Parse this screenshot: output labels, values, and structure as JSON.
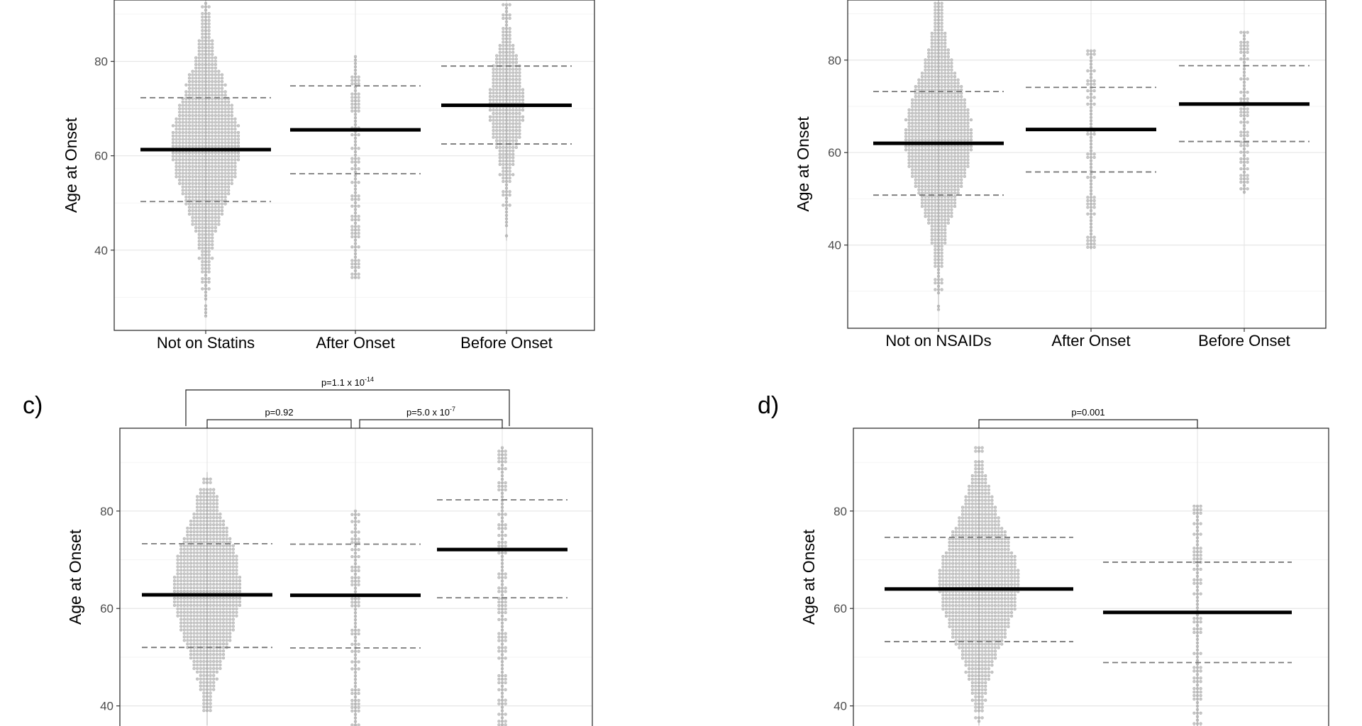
{
  "figure": {
    "panels": [
      {
        "label": "",
        "chart_data": {
          "type": "scatter",
          "subtype": "beeswarm with mean and SD lines",
          "ylabel": "Age at Onset",
          "xlabel": "",
          "ylim": [
            23,
            93
          ],
          "yticks": [
            40,
            60,
            80
          ],
          "grid": true,
          "categories": [
            "Not on Statins",
            "After Onset",
            "Before Onset"
          ],
          "groups": [
            {
              "name": "Not on Statins",
              "mean": 61.3,
              "sd_low": 50.3,
              "sd_high": 72.3,
              "min": 26,
              "max": 93,
              "peak": 62,
              "halfwidth": 10,
              "n": 900
            },
            {
              "name": "After Onset",
              "mean": 65.5,
              "sd_low": 56.2,
              "sd_high": 74.8,
              "min": 34,
              "max": 81,
              "peak": 68,
              "halfwidth": 1,
              "n": 45
            },
            {
              "name": "Before Onset",
              "mean": 70.7,
              "sd_low": 62.5,
              "sd_high": 79.0,
              "min": 42,
              "max": 92,
              "peak": 71,
              "halfwidth": 5,
              "n": 180
            }
          ],
          "comparisons": []
        }
      },
      {
        "label": "",
        "chart_data": {
          "type": "scatter",
          "subtype": "beeswarm with mean and SD lines",
          "ylabel": "Age at Onset",
          "xlabel": "",
          "ylim": [
            22,
            93
          ],
          "yticks": [
            40,
            60,
            80
          ],
          "grid": true,
          "categories": [
            "Not on NSAIDs",
            "After Onset",
            "Before Onset"
          ],
          "groups": [
            {
              "name": "Not on NSAIDs",
              "mean": 62.0,
              "sd_low": 50.8,
              "sd_high": 73.2,
              "min": 26,
              "max": 93,
              "peak": 63,
              "halfwidth": 10,
              "n": 800
            },
            {
              "name": "After Onset",
              "mean": 65.0,
              "sd_low": 55.8,
              "sd_high": 74.1,
              "min": 39,
              "max": 82,
              "peak": 66,
              "halfwidth": 1,
              "n": 60
            },
            {
              "name": "Before Onset",
              "mean": 70.5,
              "sd_low": 62.4,
              "sd_high": 78.8,
              "min": 51,
              "max": 86,
              "peak": 72,
              "halfwidth": 2,
              "n": 90
            }
          ],
          "comparisons": []
        }
      },
      {
        "label": "c)",
        "chart_data": {
          "type": "scatter",
          "subtype": "beeswarm with mean and SD lines",
          "ylabel": "Age at Onset",
          "xlabel": "",
          "ylim": [
            35,
            97
          ],
          "yticks": [
            40,
            60,
            80
          ],
          "grid": true,
          "categories": [
            "",
            "",
            ""
          ],
          "groups": [
            {
              "name": "",
              "mean": 62.8,
              "sd_low": 52.0,
              "sd_high": 73.3,
              "min": 36,
              "max": 88,
              "peak": 64,
              "halfwidth": 10,
              "n": 780
            },
            {
              "name": "",
              "mean": 62.7,
              "sd_low": 51.9,
              "sd_high": 73.2,
              "min": 35,
              "max": 80,
              "peak": 63,
              "halfwidth": 1,
              "n": 60
            },
            {
              "name": "",
              "mean": 72.1,
              "sd_low": 62.2,
              "sd_high": 82.3,
              "min": 35,
              "max": 93,
              "peak": 73,
              "halfwidth": 1,
              "n": 45
            }
          ],
          "comparisons": [
            {
              "from": 0,
              "to": 1,
              "label_base": "p=0.92",
              "label_exp": "",
              "level": 0
            },
            {
              "from": 1,
              "to": 2,
              "label_base": "p=5.0 x 10",
              "label_exp": "-7",
              "level": 0
            },
            {
              "from": 0,
              "to": 2,
              "label_base": "p=1.1 x 10",
              "label_exp": "-14",
              "level": 1
            }
          ]
        }
      },
      {
        "label": "d)",
        "chart_data": {
          "type": "scatter",
          "subtype": "beeswarm with mean and SD lines",
          "ylabel": "Age at Onset",
          "xlabel": "",
          "ylim": [
            35,
            97
          ],
          "yticks": [
            40,
            60,
            80
          ],
          "grid": true,
          "categories": [
            "",
            ""
          ],
          "groups": [
            {
              "name": "",
              "mean": 64.0,
              "sd_low": 53.2,
              "sd_high": 74.6,
              "min": 36,
              "max": 93,
              "peak": 65,
              "halfwidth": 12,
              "n": 800
            },
            {
              "name": "",
              "mean": 59.2,
              "sd_low": 48.9,
              "sd_high": 69.5,
              "min": 35,
              "max": 81,
              "peak": 61,
              "halfwidth": 1,
              "n": 55
            }
          ],
          "comparisons": [
            {
              "from": 0,
              "to": 1,
              "label_base": "p=0.001",
              "label_exp": "",
              "level": 0
            }
          ]
        }
      }
    ]
  }
}
